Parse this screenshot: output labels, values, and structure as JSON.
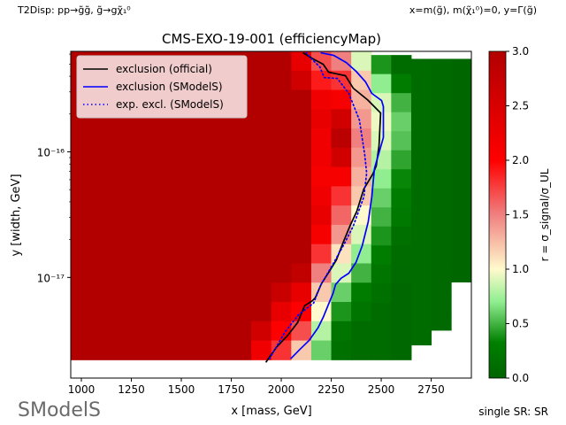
{
  "header": {
    "left": "T2Disp: pp→g̃g̃, g̃→gχ̃₁⁰",
    "right": "x=m(g̃), m(χ̃₁⁰)=0, y=Γ(g̃)"
  },
  "footer": {
    "logo_text": "SModelS",
    "right": "single SR: SR"
  },
  "chart_data": {
    "type": "heatmap",
    "title": "CMS-EXO-19-001 (efficiencyMap)",
    "xlabel": "x [mass, GeV]",
    "ylabel": "y [width, GeV]",
    "xlim": [
      947,
      2951
    ],
    "ylim": [
      1.58e-18,
      6.31e-16
    ],
    "yscale": "log",
    "xticks": [
      1000,
      1250,
      1500,
      1750,
      2000,
      2250,
      2500,
      2750
    ],
    "xtick_labels": [
      "1000",
      "1250",
      "1500",
      "1750",
      "2000",
      "2250",
      "2500",
      "2750"
    ],
    "yticks": [
      1e-16,
      1e-17
    ],
    "ytick_labels": [
      "10⁻¹⁶",
      "10⁻¹⁷"
    ],
    "colorbar": {
      "label": "r = σ_signal/σ_UL",
      "range": [
        0,
        3
      ],
      "ticks": [
        0,
        0.5,
        1,
        1.5,
        2,
        2.5,
        3
      ],
      "tick_labels": [
        "0.0",
        "0.5",
        "1.0",
        "1.5",
        "2.0",
        "2.5",
        "3.0"
      ],
      "stops": [
        [
          0,
          "#006400"
        ],
        [
          0.33,
          "#008000"
        ],
        [
          0.7,
          "#90ee90"
        ],
        [
          1.0,
          "#fffacd"
        ],
        [
          1.5,
          "#f08080"
        ],
        [
          2.0,
          "#ff0000"
        ],
        [
          3.0,
          "#b20000"
        ]
      ]
    },
    "columns": [
      {
        "x0": 947,
        "x1": 1850,
        "ymin": 2.21e-18,
        "ymax": 6.31e-16,
        "r": [
          3,
          3,
          3,
          3,
          3,
          3,
          3,
          3,
          3,
          3,
          3,
          3,
          3,
          3,
          3,
          3
        ]
      },
      {
        "x0": 1850,
        "x1": 1950,
        "ymin": 2.21e-18,
        "ymax": 6.31e-16,
        "r": [
          3,
          3,
          3,
          3,
          3,
          3,
          3,
          3,
          3,
          3,
          3,
          3,
          3,
          3,
          2.6,
          2.2
        ]
      },
      {
        "x0": 1950,
        "x1": 2050,
        "ymin": 2.21e-18,
        "ymax": 6.31e-16,
        "r": [
          3,
          3,
          3,
          3,
          3,
          3,
          3,
          3,
          3,
          3,
          3,
          3,
          2.7,
          2.3,
          2.0,
          1.8
        ]
      },
      {
        "x0": 2050,
        "x1": 2150,
        "ymin": 2.21e-18,
        "ymax": 6.31e-16,
        "r": [
          2.3,
          2.6,
          3,
          3,
          3,
          3,
          3,
          3,
          3,
          3,
          3,
          2.8,
          2.3,
          2.0,
          1.7,
          1.2
        ]
      },
      {
        "x0": 2150,
        "x1": 2250,
        "ymin": 2.21e-18,
        "ymax": 6.31e-16,
        "r": [
          1.7,
          1.9,
          2.2,
          2.3,
          2.2,
          2.2,
          2.1,
          2.2,
          2.3,
          2.1,
          1.8,
          1.5,
          1.2,
          1.0,
          0.8,
          0.6
        ]
      },
      {
        "x0": 2250,
        "x1": 2350,
        "ymin": 2.21e-18,
        "ymax": 6.31e-16,
        "r": [
          1.5,
          1.8,
          2.1,
          2.6,
          2.9,
          2.6,
          2.1,
          1.8,
          1.6,
          1.4,
          1.1,
          0.9,
          0.6,
          0.4,
          0.2,
          0.15
        ]
      },
      {
        "x0": 2350,
        "x1": 2450,
        "ymin": 2.21e-18,
        "ymax": 6.31e-16,
        "r": [
          0.9,
          1.2,
          1.3,
          1.4,
          1.5,
          1.4,
          1.3,
          1.2,
          1.0,
          0.9,
          0.7,
          0.5,
          0.3,
          0.2,
          0.1,
          0.1
        ]
      },
      {
        "x0": 2450,
        "x1": 2550,
        "ymin": 2.21e-18,
        "ymax": 5.9e-16,
        "r": [
          0.4,
          0.7,
          0.9,
          0.95,
          0.9,
          0.8,
          0.7,
          0.6,
          0.5,
          0.4,
          0.3,
          0.2,
          0.15,
          0.1,
          0.1,
          0.1
        ]
      },
      {
        "x0": 2550,
        "x1": 2650,
        "ymin": 2.21e-18,
        "ymax": 5.9e-16,
        "r": [
          0.1,
          0.3,
          0.5,
          0.6,
          0.55,
          0.45,
          0.35,
          0.3,
          0.25,
          0.15,
          0.1,
          0.08,
          0.05,
          0.05,
          0.05,
          0.05
        ]
      },
      {
        "x0": 2650,
        "x1": 2750,
        "ymin": 2.9e-18,
        "ymax": 5.5e-16,
        "r": [
          0.1,
          0.1,
          0.1,
          0.1,
          0.1,
          0.1,
          0.1,
          0.1,
          0.1,
          0.1,
          0.1,
          0.1,
          0.1,
          0.1,
          0.1,
          0.1
        ]
      },
      {
        "x0": 2750,
        "x1": 2850,
        "ymin": 3.8e-18,
        "ymax": 5.5e-16,
        "r": [
          0.07,
          0.07,
          0.07,
          0.07,
          0.07,
          0.07,
          0.07,
          0.07,
          0.07,
          0.07,
          0.07,
          0.07,
          0.07,
          0.07,
          0.07,
          0.07
        ]
      },
      {
        "x0": 2850,
        "x1": 2950,
        "ymin": 9.2e-18,
        "ymax": 5.5e-16,
        "r": [
          0.04,
          0.04,
          0.04,
          0.04,
          0.04,
          0.04,
          0.04,
          0.04,
          0.04,
          0.04,
          0.04,
          0.04,
          0.04,
          0.04,
          0.04,
          0.04
        ]
      }
    ],
    "series": [
      {
        "name": "exclusion (official)",
        "color": "#000000",
        "style": "solid",
        "x": [
          1923,
          1976,
          2034,
          2082,
          2117,
          2153,
          2170,
          2201,
          2241,
          2276,
          2307,
          2343,
          2378,
          2413,
          2458,
          2475,
          2489,
          2497,
          2431,
          2360,
          2321,
          2237,
          2210,
          2153,
          2109
        ],
        "y": [
          2.11e-18,
          2.78e-18,
          3.48e-18,
          4.38e-18,
          5.96e-18,
          6.46e-18,
          6.89e-18,
          8.93e-18,
          1.12e-17,
          1.38e-17,
          1.85e-17,
          2.56e-17,
          3.37e-17,
          5.06e-17,
          6.67e-17,
          7.71e-17,
          1.12e-16,
          2.04e-16,
          2.6e-16,
          3.21e-16,
          4.04e-16,
          4.31e-16,
          4.98e-16,
          5.57e-16,
          6.15e-16
        ]
      },
      {
        "name": "exclusion (SModelS)",
        "color": "#0000ff",
        "style": "solid",
        "x": [
          2047,
          2095,
          2140,
          2184,
          2210,
          2237,
          2259,
          2272,
          2299,
          2338,
          2374,
          2405,
          2435,
          2453,
          2466,
          2511,
          2511,
          2502,
          2453,
          2422,
          2374,
          2325,
          2263,
          2197
        ],
        "y": [
          2.25e-18,
          2.69e-18,
          3.16e-18,
          3.97e-18,
          4.82e-18,
          6.15e-18,
          7.47e-18,
          8.79e-18,
          9.84e-18,
          1.08e-17,
          1.32e-17,
          1.79e-17,
          2.78e-17,
          4.37e-17,
          7.35e-17,
          1.3e-16,
          2.29e-16,
          2.56e-16,
          2.92e-16,
          3.6e-16,
          4.38e-16,
          5.14e-16,
          5.86e-16,
          6.15e-16
        ]
      },
      {
        "name": "exp. excl. (SModelS)",
        "color": "#0000ff",
        "style": "dotted",
        "x": [
          1941,
          2020,
          2087,
          2162,
          2197,
          2259,
          2316,
          2360,
          2413,
          2427,
          2418,
          2391,
          2338,
          2281,
          2215,
          2193,
          2148,
          2126
        ],
        "y": [
          2.25e-18,
          3.7e-18,
          5.06e-18,
          6.25e-18,
          8.66e-18,
          1.28e-17,
          1.86e-17,
          2.56e-17,
          4.37e-17,
          6.77e-17,
          9.37e-17,
          1.79e-16,
          2.92e-16,
          3.84e-16,
          3.9e-16,
          4.74e-16,
          5.57e-16,
          6.15e-16
        ]
      }
    ],
    "legend": {
      "placement": "top-left",
      "entries": [
        "exclusion (official)",
        "exclusion (SModelS)",
        "exp. excl. (SModelS)"
      ]
    }
  }
}
